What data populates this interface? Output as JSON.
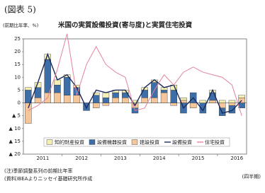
{
  "chart_data": {
    "type": "bar",
    "header": "(図表 5)",
    "title": "米国の実質設備投資(寄与度)と実質住宅投資",
    "y_label": "(前期比年率、%)",
    "x_label": "(四半期)",
    "notes": [
      "(注)季節調整系列の前期比年率",
      "(資料)BEAよりニッセイ基礎研究所作成"
    ],
    "categories": [
      "2011",
      null,
      null,
      null,
      "2012",
      null,
      null,
      null,
      "2013",
      null,
      null,
      null,
      "2014",
      null,
      null,
      null,
      "2015",
      null,
      null,
      null,
      "2016",
      null,
      null
    ],
    "ylim": [
      -20,
      25
    ],
    "yticks": [
      25,
      20,
      15,
      10,
      5,
      0,
      {
        "value": -5,
        "label": "▲ 5"
      },
      {
        "value": -10,
        "label": "▲ 10"
      },
      {
        "value": -15,
        "label": "▲ 15"
      },
      {
        "value": -20,
        "label": "▲ 20"
      }
    ],
    "legend": "bottom",
    "series": [
      {
        "name": "知的財産投資",
        "color": "#f4efb4",
        "values": [
          1,
          2,
          2,
          2,
          1,
          1,
          0,
          1,
          2,
          1,
          1,
          1,
          1,
          1,
          1,
          2,
          1,
          0,
          1,
          1,
          1,
          1,
          1
        ]
      },
      {
        "name": "設備機器投資",
        "color": "#3d6ea8",
        "values": [
          5,
          4,
          13,
          3,
          7,
          3,
          -3,
          3,
          2,
          2,
          2,
          -2,
          3,
          6,
          1,
          5,
          -4,
          4,
          -4,
          3,
          -3,
          -3,
          -2
        ]
      },
      {
        "name": "建設投資",
        "color": "#f6c69b",
        "values": [
          -8,
          2,
          4,
          4,
          3,
          3,
          0,
          -2,
          -1,
          2,
          2,
          -2,
          2,
          2,
          4,
          -1,
          1,
          -2,
          0,
          1,
          -2,
          -1,
          2
        ]
      },
      {
        "name": "設備投資",
        "type": "line",
        "color": "#1c2b5c",
        "values": [
          -2,
          8,
          19,
          9,
          11,
          6,
          -2,
          5,
          4,
          5,
          5,
          -1,
          6,
          9,
          6,
          7,
          -2,
          2,
          -3,
          5,
          -4,
          -3,
          1
        ]
      },
      {
        "name": "住宅投資",
        "type": "line",
        "color": "#e5839b",
        "values": [
          -3,
          -1,
          2,
          13,
          27,
          3,
          15,
          22,
          15,
          12,
          10,
          -3,
          -2,
          5,
          11,
          7,
          12,
          14,
          12,
          11,
          10,
          7,
          -5
        ]
      }
    ]
  }
}
